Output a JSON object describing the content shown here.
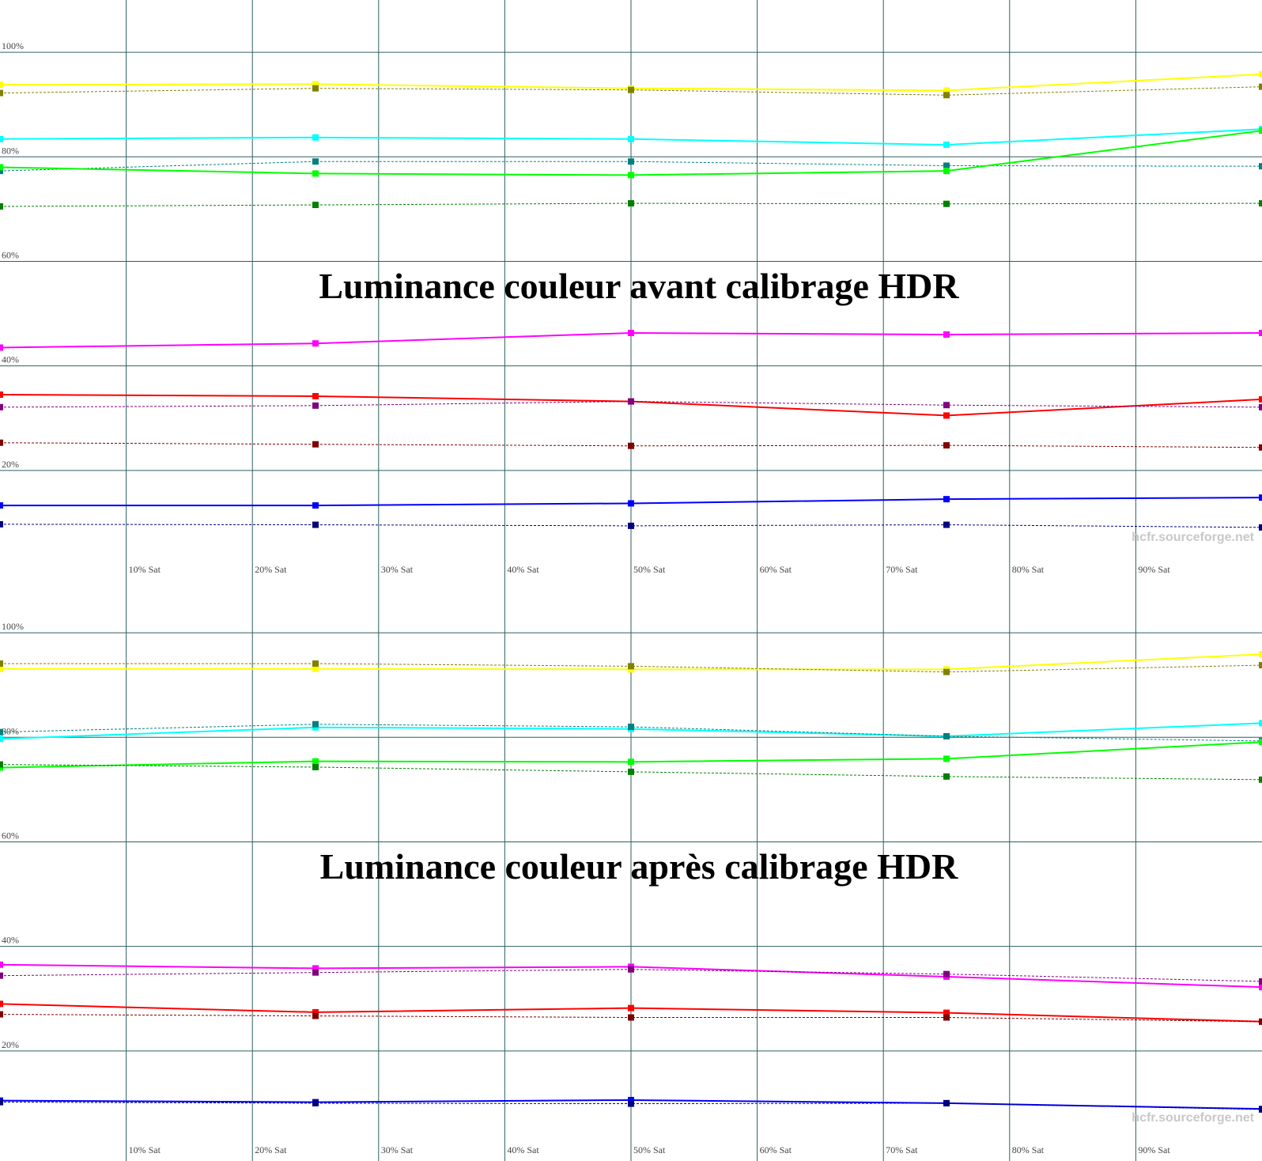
{
  "chart_data": [
    {
      "type": "line",
      "title": "Luminance couleur avant calibrage HDR",
      "watermark": "hcfr.sourceforge.net",
      "x": [
        0,
        25,
        50,
        75,
        100
      ],
      "xlim": [
        0,
        100
      ],
      "xticks": [
        {
          "value": 10,
          "label": "10% Sat"
        },
        {
          "value": 20,
          "label": "20% Sat"
        },
        {
          "value": 30,
          "label": "30% Sat"
        },
        {
          "value": 40,
          "label": "40% Sat"
        },
        {
          "value": 50,
          "label": "50% Sat"
        },
        {
          "value": 60,
          "label": "60% Sat"
        },
        {
          "value": 70,
          "label": "70% Sat"
        },
        {
          "value": 80,
          "label": "80% Sat"
        },
        {
          "value": 90,
          "label": "90% Sat"
        }
      ],
      "ylim": [
        0,
        110
      ],
      "yticks": [
        {
          "value": 20,
          "label": "20%"
        },
        {
          "value": 40,
          "label": "40%"
        },
        {
          "value": 60,
          "label": "60%"
        },
        {
          "value": 80,
          "label": "80%"
        },
        {
          "value": 100,
          "label": "100%"
        }
      ],
      "grid": true,
      "series": [
        {
          "color": "#ffff00",
          "dashed": false,
          "values": [
            93.8,
            93.9,
            93.1,
            92.7,
            95.8
          ]
        },
        {
          "color": "#808000",
          "dashed": true,
          "values": [
            92.2,
            93.1,
            92.8,
            91.8,
            93.4
          ]
        },
        {
          "color": "#00ffff",
          "dashed": false,
          "values": [
            83.4,
            83.7,
            83.4,
            82.3,
            85.3
          ]
        },
        {
          "color": "#008080",
          "dashed": true,
          "values": [
            77.3,
            79.1,
            79.1,
            78.3,
            78.2
          ]
        },
        {
          "color": "#00ff00",
          "dashed": false,
          "values": [
            78.0,
            76.8,
            76.5,
            77.3,
            85.0
          ]
        },
        {
          "color": "#008000",
          "dashed": true,
          "values": [
            70.5,
            70.8,
            71.1,
            71.0,
            71.1
          ]
        },
        {
          "color": "#ff00ff",
          "dashed": false,
          "values": [
            43.5,
            44.3,
            46.3,
            46.0,
            46.3
          ]
        },
        {
          "color": "#ff0000",
          "dashed": false,
          "values": [
            34.5,
            34.2,
            33.2,
            30.5,
            33.6
          ]
        },
        {
          "color": "#800080",
          "dashed": true,
          "values": [
            32.1,
            32.4,
            33.2,
            32.5,
            32.1
          ]
        },
        {
          "color": "#800000",
          "dashed": true,
          "values": [
            25.3,
            25.0,
            24.7,
            24.8,
            24.4
          ]
        },
        {
          "color": "#0000ff",
          "dashed": false,
          "values": [
            13.3,
            13.3,
            13.7,
            14.5,
            14.8
          ]
        },
        {
          "color": "#000080",
          "dashed": true,
          "values": [
            9.7,
            9.6,
            9.4,
            9.6,
            9.1
          ]
        }
      ]
    },
    {
      "type": "line",
      "title": "Luminance couleur après calibrage HDR",
      "watermark": "hcfr.sourceforge.net",
      "x": [
        0,
        25,
        50,
        75,
        100
      ],
      "xlim": [
        0,
        100
      ],
      "xticks": [
        {
          "value": 10,
          "label": "10% Sat"
        },
        {
          "value": 20,
          "label": "20% Sat"
        },
        {
          "value": 30,
          "label": "30% Sat"
        },
        {
          "value": 40,
          "label": "40% Sat"
        },
        {
          "value": 50,
          "label": "50% Sat"
        },
        {
          "value": 60,
          "label": "60% Sat"
        },
        {
          "value": 70,
          "label": "70% Sat"
        },
        {
          "value": 80,
          "label": "80% Sat"
        },
        {
          "value": 90,
          "label": "90% Sat"
        }
      ],
      "ylim": [
        0,
        110
      ],
      "yticks": [
        {
          "value": 20,
          "label": "20%"
        },
        {
          "value": 40,
          "label": "40%"
        },
        {
          "value": 60,
          "label": "60%"
        },
        {
          "value": 80,
          "label": "80%"
        },
        {
          "value": 100,
          "label": "100%"
        }
      ],
      "grid": true,
      "series": [
        {
          "color": "#ffff00",
          "dashed": false,
          "values": [
            93.1,
            93.1,
            93.0,
            93.0,
            95.9
          ]
        },
        {
          "color": "#808000",
          "dashed": true,
          "values": [
            94.1,
            94.1,
            93.6,
            92.5,
            93.8
          ]
        },
        {
          "color": "#00ffff",
          "dashed": false,
          "values": [
            79.7,
            81.9,
            81.6,
            80.2,
            82.7
          ]
        },
        {
          "color": "#008080",
          "dashed": true,
          "values": [
            81.0,
            82.5,
            82.0,
            80.2,
            79.3
          ]
        },
        {
          "color": "#00ff00",
          "dashed": false,
          "values": [
            74.2,
            75.4,
            75.3,
            75.9,
            79.1
          ]
        },
        {
          "color": "#008000",
          "dashed": true,
          "values": [
            74.8,
            74.3,
            73.4,
            72.5,
            71.9
          ]
        },
        {
          "color": "#ff00ff",
          "dashed": false,
          "values": [
            36.5,
            35.8,
            36.1,
            34.2,
            32.2
          ]
        },
        {
          "color": "#800080",
          "dashed": true,
          "values": [
            34.4,
            35.0,
            35.6,
            34.7,
            33.3
          ]
        },
        {
          "color": "#ff0000",
          "dashed": false,
          "values": [
            29.0,
            27.4,
            28.2,
            27.3,
            25.6
          ]
        },
        {
          "color": "#800000",
          "dashed": true,
          "values": [
            27.0,
            26.7,
            26.4,
            26.4,
            25.6
          ]
        },
        {
          "color": "#0000ff",
          "dashed": false,
          "values": [
            10.5,
            10.2,
            10.6,
            10.0,
            8.9
          ]
        },
        {
          "color": "#000080",
          "dashed": true,
          "values": [
            10.2,
            10.0,
            9.9,
            10.0,
            8.8
          ]
        }
      ]
    }
  ]
}
